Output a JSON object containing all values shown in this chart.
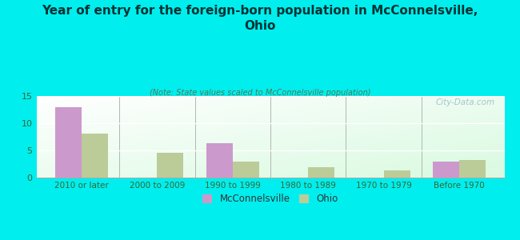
{
  "title": "Year of entry for the foreign-born population in McConnelsville,\nOhio",
  "subtitle": "(Note: State values scaled to McConnelsville population)",
  "categories": [
    "2010 or later",
    "2000 to 2009",
    "1990 to 1999",
    "1980 to 1989",
    "1970 to 1979",
    "Before 1970"
  ],
  "mcconnelsville_values": [
    13,
    0,
    6.3,
    0,
    0,
    3
  ],
  "ohio_values": [
    8.1,
    4.6,
    2.9,
    1.9,
    1.3,
    3.2
  ],
  "mcconnelsville_color": "#cc99cc",
  "ohio_color": "#bbcc99",
  "background_color": "#00eeee",
  "ylim": [
    0,
    15
  ],
  "yticks": [
    0,
    5,
    10,
    15
  ],
  "bar_width": 0.35,
  "legend_labels": [
    "McConnelsville",
    "Ohio"
  ],
  "watermark": "City-Data.com",
  "title_color": "#003333",
  "subtitle_color": "#557755",
  "tick_color": "#336633"
}
